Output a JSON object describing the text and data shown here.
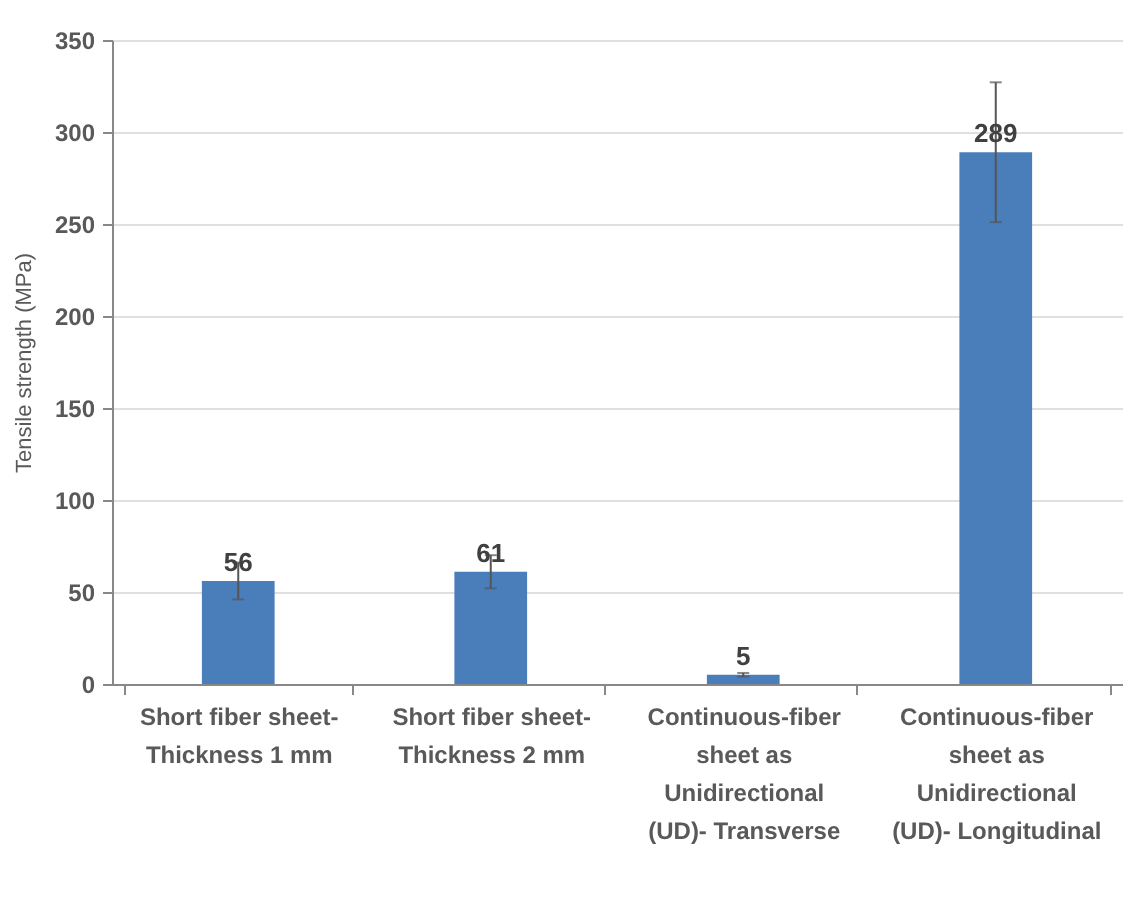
{
  "chart_data": {
    "type": "bar",
    "ylabel": "Tensile strength (MPa)",
    "categories": [
      "Short fiber sheet-Thickness 1 mm",
      "Short fiber sheet-Thickness 2 mm",
      "Continuous-fiber sheet as Unidirectional (UD)- Transverse",
      "Continuous-fiber sheet as Unidirectional (UD)- Longitudinal"
    ],
    "values": [
      56,
      61,
      5,
      289
    ],
    "errors": [
      10,
      9,
      1,
      38
    ],
    "color": "#4a7ebb",
    "data_labels": true,
    "ylim": [
      0,
      350
    ],
    "yticks": [
      0,
      50,
      100,
      150,
      200,
      250,
      300,
      350
    ],
    "grid": "y"
  }
}
